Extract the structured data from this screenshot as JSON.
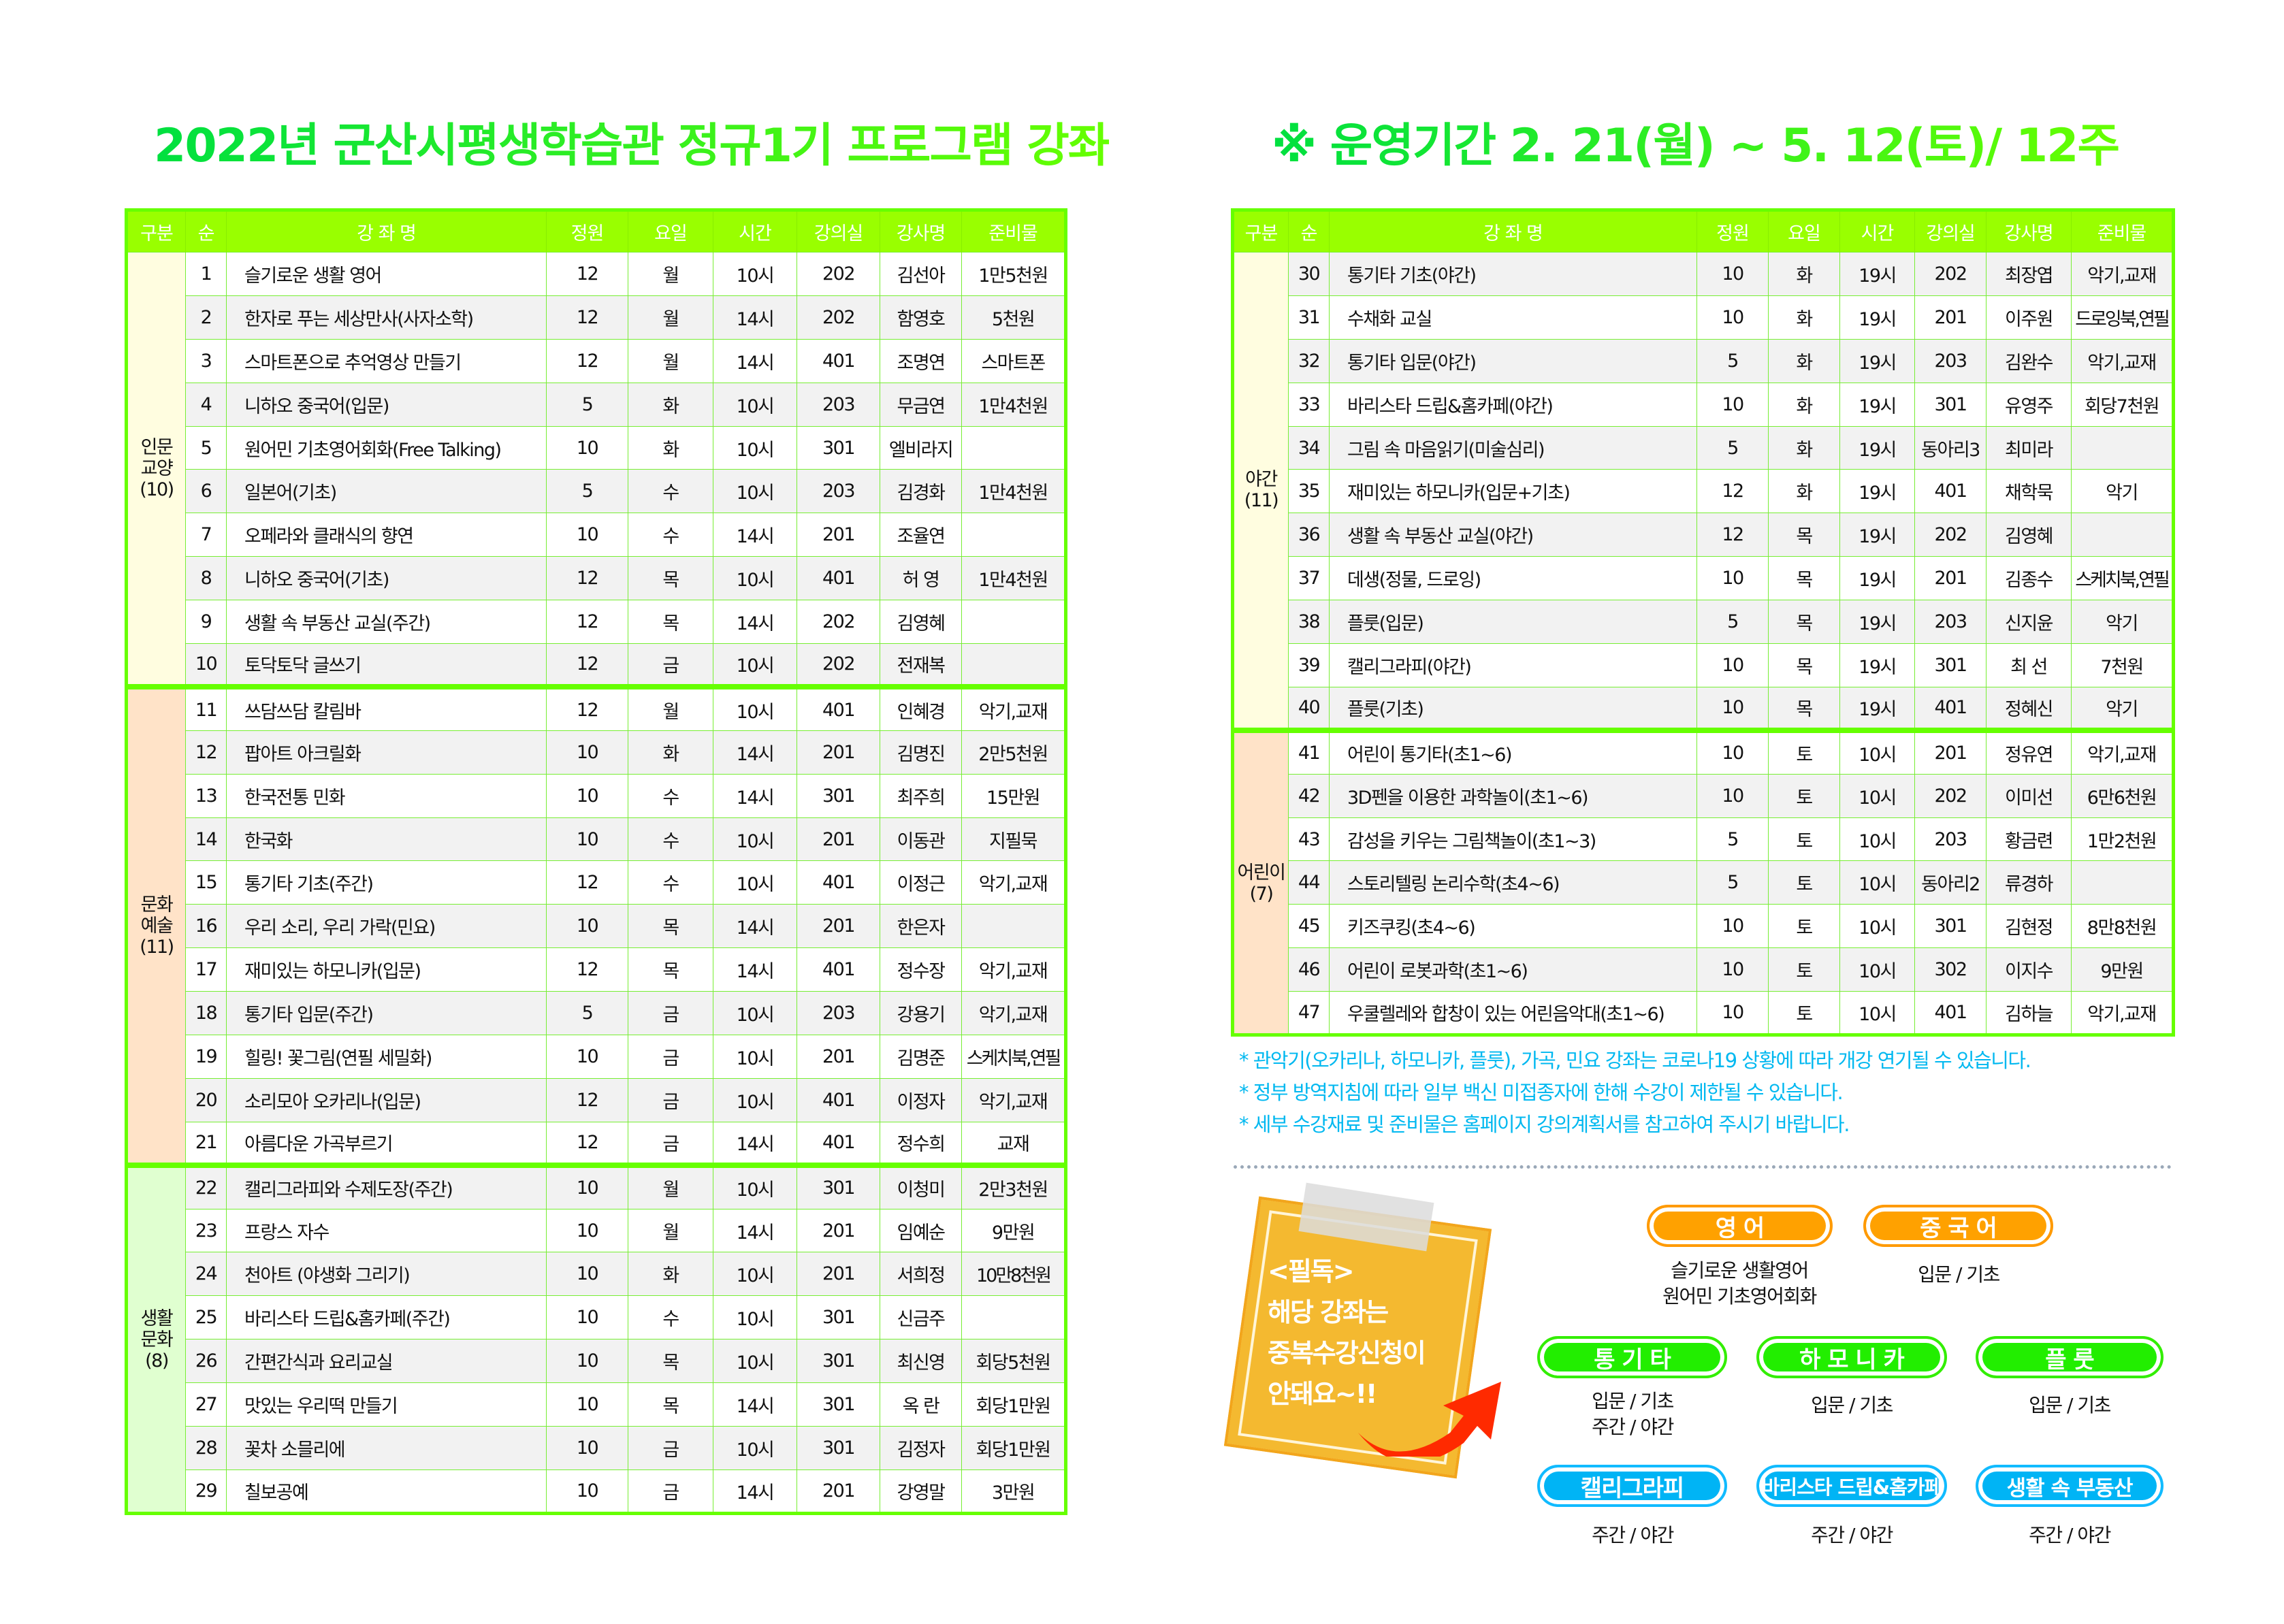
{
  "titles": {
    "main": "2022년 군산시평생학습관 정규1기 프로그램 강좌",
    "period": "※ 운영기간 2. 21(월) ~ 5. 12(토)/ 12주"
  },
  "colors": {
    "header": "#99ff00",
    "border": "#66ff00",
    "note_text": "#00b8f0",
    "humanities": "#fffde0",
    "arts": "#ffe3c8",
    "life": "#e0ffd0"
  },
  "columns": [
    "구분",
    "순",
    "강 좌 명",
    "정원",
    "요일",
    "시간",
    "강의실",
    "강사명",
    "준비물"
  ],
  "left_table": {
    "groups": [
      {
        "label": "인문\n교양\n(10)",
        "color": "#fffde0",
        "rows": [
          [
            "1",
            "슬기로운 생활 영어",
            "12",
            "월",
            "10시",
            "202",
            "김선아",
            "1만5천원"
          ],
          [
            "2",
            "한자로 푸는 세상만사(사자소학)",
            "12",
            "월",
            "14시",
            "202",
            "함영호",
            "5천원"
          ],
          [
            "3",
            "스마트폰으로 추억영상 만들기",
            "12",
            "월",
            "14시",
            "401",
            "조명연",
            "스마트폰"
          ],
          [
            "4",
            "니하오 중국어(입문)",
            "5",
            "화",
            "10시",
            "203",
            "무금연",
            "1만4천원"
          ],
          [
            "5",
            "원어민 기초영어회화(Free Talking)",
            "10",
            "화",
            "10시",
            "301",
            "엘비라지",
            ""
          ],
          [
            "6",
            "일본어(기초)",
            "5",
            "수",
            "10시",
            "203",
            "김경화",
            "1만4천원"
          ],
          [
            "7",
            "오페라와 클래식의 향연",
            "10",
            "수",
            "14시",
            "201",
            "조율연",
            ""
          ],
          [
            "8",
            "니하오 중국어(기초)",
            "12",
            "목",
            "10시",
            "401",
            "허  영",
            "1만4천원"
          ],
          [
            "9",
            "생활 속 부동산 교실(주간)",
            "12",
            "목",
            "14시",
            "202",
            "김영혜",
            ""
          ],
          [
            "10",
            "토닥토닥 글쓰기",
            "12",
            "금",
            "10시",
            "202",
            "전재복",
            ""
          ]
        ]
      },
      {
        "label": "문화\n예술\n(11)",
        "color": "#ffe3c8",
        "rows": [
          [
            "11",
            "쓰담쓰담 칼림바",
            "12",
            "월",
            "10시",
            "401",
            "인혜경",
            "악기,교재"
          ],
          [
            "12",
            "팝아트 아크릴화",
            "10",
            "화",
            "14시",
            "201",
            "김명진",
            "2만5천원"
          ],
          [
            "13",
            "한국전통 민화",
            "10",
            "수",
            "14시",
            "301",
            "최주희",
            "15만원"
          ],
          [
            "14",
            "한국화",
            "10",
            "수",
            "10시",
            "201",
            "이동관",
            "지필묵"
          ],
          [
            "15",
            "통기타 기초(주간)",
            "12",
            "수",
            "10시",
            "401",
            "이정근",
            "악기,교재"
          ],
          [
            "16",
            "우리 소리, 우리 가락(민요)",
            "10",
            "목",
            "14시",
            "201",
            "한은자",
            ""
          ],
          [
            "17",
            "재미있는 하모니카(입문)",
            "12",
            "목",
            "14시",
            "401",
            "정수장",
            "악기,교재"
          ],
          [
            "18",
            "통기타 입문(주간)",
            "5",
            "금",
            "10시",
            "203",
            "강용기",
            "악기,교재"
          ],
          [
            "19",
            "힐링! 꽃그림(연필 세밀화)",
            "10",
            "금",
            "10시",
            "201",
            "김명준",
            "스케치북,연필"
          ],
          [
            "20",
            "소리모아 오카리나(입문)",
            "12",
            "금",
            "10시",
            "401",
            "이정자",
            "악기,교재"
          ],
          [
            "21",
            "아름다운 가곡부르기",
            "12",
            "금",
            "14시",
            "401",
            "정수희",
            "교재"
          ]
        ]
      },
      {
        "label": "생활\n문화\n(8)",
        "color": "#e0ffd0",
        "rows": [
          [
            "22",
            "캘리그라피와 수제도장(주간)",
            "10",
            "월",
            "10시",
            "301",
            "이청미",
            "2만3천원"
          ],
          [
            "23",
            "프랑스 자수",
            "10",
            "월",
            "14시",
            "201",
            "임예순",
            "9만원"
          ],
          [
            "24",
            "천아트 (야생화 그리기)",
            "10",
            "화",
            "10시",
            "201",
            "서희정",
            "10만8천원"
          ],
          [
            "25",
            "바리스타 드립&홈카페(주간)",
            "10",
            "수",
            "10시",
            "301",
            "신금주",
            ""
          ],
          [
            "26",
            "간편간식과 요리교실",
            "10",
            "목",
            "10시",
            "301",
            "최신영",
            "회당5천원"
          ],
          [
            "27",
            "맛있는 우리떡 만들기",
            "10",
            "목",
            "14시",
            "301",
            "옥  란",
            "회당1만원"
          ],
          [
            "28",
            "꽃차 소믈리에",
            "10",
            "금",
            "10시",
            "301",
            "김정자",
            "회당1만원"
          ],
          [
            "29",
            "칠보공예",
            "10",
            "금",
            "14시",
            "201",
            "강영말",
            "3만원"
          ]
        ]
      }
    ]
  },
  "right_table": {
    "groups": [
      {
        "label": "야간\n(11)",
        "color": "#fffde0",
        "rows": [
          [
            "30",
            "통기타 기초(야간)",
            "10",
            "화",
            "19시",
            "202",
            "최장엽",
            "악기,교재"
          ],
          [
            "31",
            "수채화 교실",
            "10",
            "화",
            "19시",
            "201",
            "이주원",
            "드로잉북,연필"
          ],
          [
            "32",
            "통기타 입문(야간)",
            "5",
            "화",
            "19시",
            "203",
            "김완수",
            "악기,교재"
          ],
          [
            "33",
            "바리스타 드립&홈카페(야간)",
            "10",
            "화",
            "19시",
            "301",
            "유영주",
            "회당7천원"
          ],
          [
            "34",
            "그림 속 마음읽기(미술심리)",
            "5",
            "화",
            "19시",
            "동아리3",
            "최미라",
            ""
          ],
          [
            "35",
            "재미있는 하모니카(입문+기초)",
            "12",
            "화",
            "19시",
            "401",
            "채학묵",
            "악기"
          ],
          [
            "36",
            "생활 속 부동산 교실(야간)",
            "12",
            "목",
            "19시",
            "202",
            "김영혜",
            ""
          ],
          [
            "37",
            "데생(정물, 드로잉)",
            "10",
            "목",
            "19시",
            "201",
            "김종수",
            "스케치북,연필"
          ],
          [
            "38",
            "플룻(입문)",
            "5",
            "목",
            "19시",
            "203",
            "신지윤",
            "악기"
          ],
          [
            "39",
            "캘리그라피(야간)",
            "10",
            "목",
            "19시",
            "301",
            "최  선",
            "7천원"
          ],
          [
            "40",
            "플룻(기초)",
            "10",
            "목",
            "19시",
            "401",
            "정혜신",
            "악기"
          ]
        ]
      },
      {
        "label": "어린이\n(7)",
        "color": "#ffe3c8",
        "rows": [
          [
            "41",
            "어린이 통기타(초1~6)",
            "10",
            "토",
            "10시",
            "201",
            "정유연",
            "악기,교재"
          ],
          [
            "42",
            "3D펜을 이용한 과학놀이(초1~6)",
            "10",
            "토",
            "10시",
            "202",
            "이미선",
            "6만6천원"
          ],
          [
            "43",
            "감성을 키우는 그림책놀이(초1~3)",
            "5",
            "토",
            "10시",
            "203",
            "황금련",
            "1만2천원"
          ],
          [
            "44",
            "스토리텔링 논리수학(초4~6)",
            "5",
            "토",
            "10시",
            "동아리2",
            "류경하",
            ""
          ],
          [
            "45",
            "키즈쿠킹(초4~6)",
            "10",
            "토",
            "10시",
            "301",
            "김현정",
            "8만8천원"
          ],
          [
            "46",
            "어린이 로봇과학(초1~6)",
            "10",
            "토",
            "10시",
            "302",
            "이지수",
            "9만원"
          ],
          [
            "47",
            "우쿨렐레와 합창이 있는 어린음악대(초1~6)",
            "10",
            "토",
            "10시",
            "401",
            "김하늘",
            "악기,교재"
          ]
        ]
      }
    ]
  },
  "notes": [
    "* 관악기(오카리나, 하모니카, 플룻), 가곡, 민요 강좌는 코로나19 상황에 따라 개강 연기될 수 있습니다.",
    "* 정부 방역지침에 따라 일부 백신 미접종자에 한해 수강이 제한될 수 있습니다.",
    "* 세부 수강재료 및 준비물은 홈페이지 강의계획서를 참고하여 주시기 바랍니다."
  ],
  "sticky_note": "<필독>\n해당 강좌는\n중복수강신청이\n안돼요~!!",
  "categories": [
    {
      "label": "영 어",
      "caption": "슬기로운 생활영어\n원어민 기초영어회화"
    },
    {
      "label": "중 국 어",
      "caption": "입문 / 기초"
    },
    {
      "label": "통 기 타",
      "caption": "입문 / 기초\n주간 / 야간"
    },
    {
      "label": "하 모 니 카",
      "caption": "입문 / 기초"
    },
    {
      "label": "플  룻",
      "caption": "입문 / 기초"
    },
    {
      "label": "캘리그라피",
      "caption": "주간 / 야간"
    },
    {
      "label": "바리스타 드립&홈카페",
      "caption": "주간 / 야간"
    },
    {
      "label": "생활 속 부동산",
      "caption": "주간 / 야간"
    }
  ]
}
